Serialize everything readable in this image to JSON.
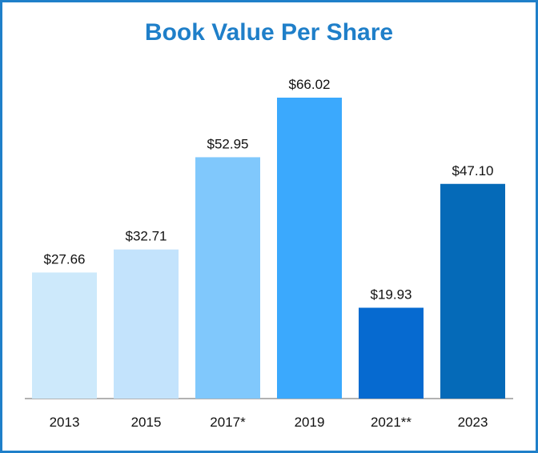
{
  "chart_data": {
    "type": "bar",
    "title": "Book Value Per Share",
    "categories": [
      "2013",
      "2015",
      "2017*",
      "2019",
      "2021**",
      "2023"
    ],
    "values": [
      27.66,
      32.71,
      52.95,
      66.02,
      19.93,
      47.1
    ],
    "value_labels": [
      "$27.66",
      "$32.71",
      "$52.95",
      "$66.02",
      "$19.93",
      "$47.10"
    ],
    "bar_colors": [
      "#cde9fb",
      "#c3e3fc",
      "#80c8fc",
      "#3ba9fd",
      "#066ad0",
      "#056ab8"
    ],
    "xlabel": "",
    "ylabel": "",
    "ylim": [
      0,
      66.02
    ],
    "grid": false,
    "legend": "none"
  },
  "colors": {
    "title": "#1f7fc9",
    "border": "#1f7fc9",
    "axis": "#999999"
  }
}
